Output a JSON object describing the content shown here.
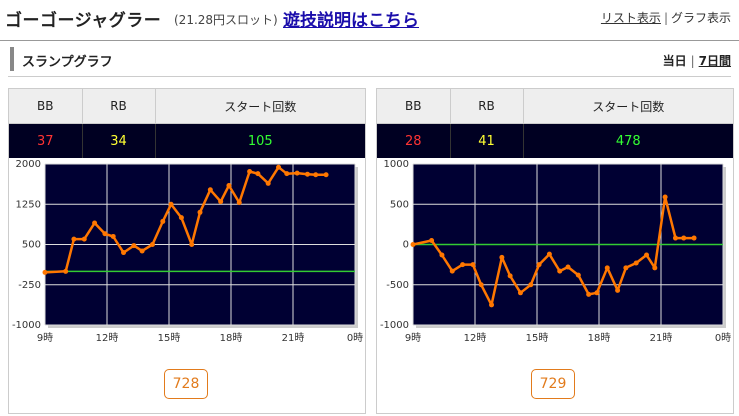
{
  "header": {
    "title": "ゴーゴージャグラー",
    "subtitle": "(21.28円スロット)",
    "help_link": "遊技説明はこちら",
    "view_list": "リスト表示",
    "view_sep": "|",
    "view_graph": "グラフ表示"
  },
  "section": {
    "title": "スランプグラフ",
    "period_today": "当日",
    "period_sep": "|",
    "period_week": "7日間"
  },
  "table_headers": {
    "bb": "BB",
    "rb": "RB",
    "start": "スタート回数"
  },
  "colors": {
    "plot_bg": "#000033",
    "line": "#ff7700",
    "zero_line": "#33cc33",
    "bb": "#ff3333",
    "rb": "#ffff33",
    "start": "#33ff33",
    "accent": "#e27b1c"
  },
  "panels": [
    {
      "bb": "37",
      "rb": "34",
      "start": "105",
      "slot_number": "728"
    },
    {
      "bb": "28",
      "rb": "41",
      "start": "478",
      "slot_number": "729"
    }
  ],
  "chart_data": [
    {
      "type": "line",
      "x_tick_labels": [
        "9時",
        "12時",
        "15時",
        "18時",
        "21時",
        "0時"
      ],
      "y_tick_labels": [
        "2000",
        "1250",
        "500",
        "-250",
        "-1000"
      ],
      "xlim": [
        9,
        24
      ],
      "ylim": [
        -1000,
        2000
      ],
      "grid": true,
      "reference_line": 0,
      "x": [
        9,
        10,
        10.4,
        10.9,
        11.4,
        11.9,
        12.3,
        12.8,
        13.3,
        13.7,
        14.2,
        14.7,
        15.1,
        15.6,
        16.1,
        16.5,
        17.0,
        17.5,
        17.9,
        18.4,
        18.9,
        19.3,
        19.8,
        20.3,
        20.7,
        21.2,
        21.7,
        22.1,
        22.6
      ],
      "y": [
        -20,
        0,
        600,
        600,
        900,
        700,
        650,
        350,
        480,
        380,
        500,
        930,
        1250,
        1000,
        500,
        1100,
        1520,
        1300,
        1600,
        1280,
        1860,
        1820,
        1640,
        1940,
        1820,
        1830,
        1810,
        1800,
        1800
      ]
    },
    {
      "type": "line",
      "x_tick_labels": [
        "9時",
        "12時",
        "15時",
        "18時",
        "21時",
        "0時"
      ],
      "y_tick_labels": [
        "1000",
        "500",
        "0",
        "-500",
        "-1000"
      ],
      "xlim": [
        9,
        24
      ],
      "ylim": [
        -1000,
        1000
      ],
      "grid": true,
      "reference_line": 0,
      "x": [
        9,
        9.9,
        10.4,
        10.9,
        11.4,
        11.9,
        12.3,
        12.8,
        13.3,
        13.7,
        14.2,
        14.7,
        15.1,
        15.6,
        16.1,
        16.5,
        17.0,
        17.5,
        17.9,
        18.4,
        18.9,
        19.3,
        19.8,
        20.3,
        20.7,
        21.2,
        21.7,
        22.1,
        22.6
      ],
      "y": [
        0,
        50,
        -130,
        -330,
        -250,
        -250,
        -500,
        -750,
        -160,
        -390,
        -600,
        -500,
        -250,
        -120,
        -330,
        -280,
        -380,
        -620,
        -600,
        -290,
        -570,
        -290,
        -230,
        -130,
        -290,
        590,
        80,
        80,
        80
      ]
    }
  ]
}
